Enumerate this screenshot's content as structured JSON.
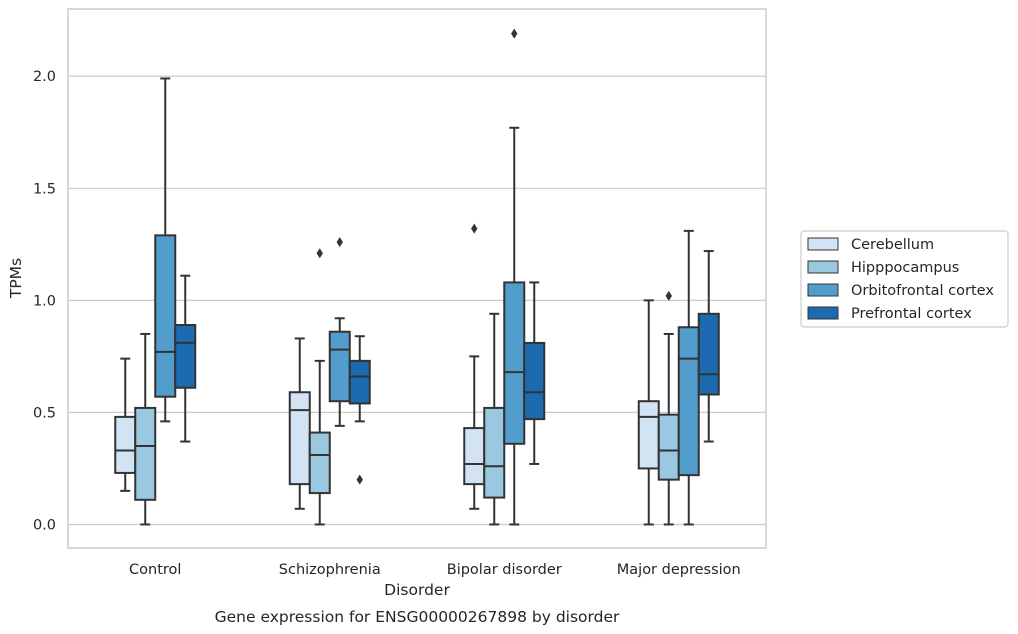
{
  "chart_data": {
    "type": "box",
    "title": "",
    "caption": "Gene expression for ENSG00000267898 by disorder",
    "xlabel": "Disorder",
    "ylabel": "TPMs",
    "ylim": [
      -0.105,
      2.3
    ],
    "yticks": [
      "0.0",
      "0.5",
      "1.0",
      "1.5",
      "2.0"
    ],
    "ytick_values": [
      0,
      0.5,
      1.0,
      1.5,
      2.0
    ],
    "grid": "horizontal",
    "legend_position": "right",
    "categories": [
      "Control",
      "Schizophrenia",
      "Bipolar disorder",
      "Major depression"
    ],
    "series": [
      {
        "name": "Cerebellum",
        "color": "#d2e3f3",
        "boxes": [
          {
            "whisker_low": 0.15,
            "q1": 0.23,
            "median": 0.33,
            "q3": 0.48,
            "whisker_high": 0.74,
            "outliers": []
          },
          {
            "whisker_low": 0.07,
            "q1": 0.18,
            "median": 0.51,
            "q3": 0.59,
            "whisker_high": 0.83,
            "outliers": []
          },
          {
            "whisker_low": 0.07,
            "q1": 0.18,
            "median": 0.27,
            "q3": 0.43,
            "whisker_high": 0.75,
            "outliers": [
              1.32
            ]
          },
          {
            "whisker_low": 0.0,
            "q1": 0.25,
            "median": 0.48,
            "q3": 0.55,
            "whisker_high": 1.0,
            "outliers": []
          }
        ]
      },
      {
        "name": "Hipppocampus",
        "color": "#9ac8e0",
        "boxes": [
          {
            "whisker_low": 0.0,
            "q1": 0.11,
            "median": 0.35,
            "q3": 0.52,
            "whisker_high": 0.85,
            "outliers": []
          },
          {
            "whisker_low": 0.0,
            "q1": 0.14,
            "median": 0.31,
            "q3": 0.41,
            "whisker_high": 0.73,
            "outliers": [
              1.21
            ]
          },
          {
            "whisker_low": 0.0,
            "q1": 0.12,
            "median": 0.26,
            "q3": 0.52,
            "whisker_high": 0.94,
            "outliers": []
          },
          {
            "whisker_low": 0.0,
            "q1": 0.2,
            "median": 0.33,
            "q3": 0.49,
            "whisker_high": 0.85,
            "outliers": [
              1.02
            ]
          }
        ]
      },
      {
        "name": "Orbitofrontal cortex",
        "color": "#529dcc",
        "boxes": [
          {
            "whisker_low": 0.46,
            "q1": 0.57,
            "median": 0.77,
            "q3": 1.29,
            "whisker_high": 1.99,
            "outliers": []
          },
          {
            "whisker_low": 0.44,
            "q1": 0.55,
            "median": 0.78,
            "q3": 0.86,
            "whisker_high": 0.92,
            "outliers": [
              1.26
            ]
          },
          {
            "whisker_low": 0.0,
            "q1": 0.36,
            "median": 0.68,
            "q3": 1.08,
            "whisker_high": 1.77,
            "outliers": [
              2.19
            ]
          },
          {
            "whisker_low": 0.0,
            "q1": 0.22,
            "median": 0.74,
            "q3": 0.88,
            "whisker_high": 1.31,
            "outliers": []
          }
        ]
      },
      {
        "name": "Prefrontal cortex",
        "color": "#1c6aaf",
        "boxes": [
          {
            "whisker_low": 0.37,
            "q1": 0.61,
            "median": 0.81,
            "q3": 0.89,
            "whisker_high": 1.11,
            "outliers": []
          },
          {
            "whisker_low": 0.46,
            "q1": 0.54,
            "median": 0.66,
            "q3": 0.73,
            "whisker_high": 0.84,
            "outliers": [
              0.2
            ]
          },
          {
            "whisker_low": 0.27,
            "q1": 0.47,
            "median": 0.59,
            "q3": 0.81,
            "whisker_high": 1.08,
            "outliers": []
          },
          {
            "whisker_low": 0.37,
            "q1": 0.58,
            "median": 0.67,
            "q3": 0.94,
            "whisker_high": 1.22,
            "outliers": []
          }
        ]
      }
    ]
  }
}
